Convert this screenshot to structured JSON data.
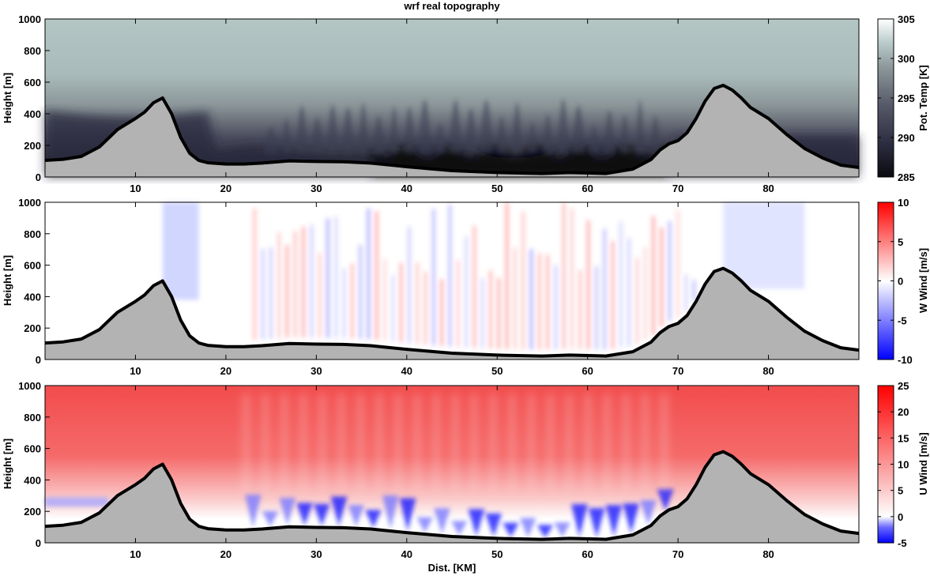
{
  "title": "wrf real topography",
  "xlabel": "Dist. [KM]",
  "chart_data": [
    {
      "type": "heatmap",
      "variable": "potential-temperature",
      "xlabel": "",
      "ylabel": "Height [m]",
      "xlim": [
        0,
        90
      ],
      "ylim": [
        0,
        1000
      ],
      "xticks": [
        10,
        20,
        30,
        40,
        50,
        60,
        70,
        80
      ],
      "yticks": [
        0,
        200,
        400,
        600,
        800,
        1000
      ],
      "colorbar": {
        "label": "Pot. Temp [K]",
        "range": [
          285,
          305
        ],
        "ticks": [
          285,
          290,
          295,
          300,
          305
        ],
        "colors": [
          "#0a0a0f",
          "#2b2b3f",
          "#555868",
          "#8e999c",
          "#b9cccb",
          "#ffffff"
        ]
      }
    },
    {
      "type": "heatmap",
      "variable": "vertical-wind",
      "xlabel": "",
      "ylabel": "Height [m]",
      "xlim": [
        0,
        90
      ],
      "ylim": [
        0,
        1000
      ],
      "xticks": [
        10,
        20,
        30,
        40,
        50,
        60,
        70,
        80
      ],
      "yticks": [
        0,
        200,
        400,
        600,
        800,
        1000
      ],
      "colorbar": {
        "label": "W Wind [m/s]",
        "range": [
          -10,
          10
        ],
        "ticks": [
          -10,
          -5,
          0,
          5,
          10
        ],
        "colors": [
          "#0000ff",
          "#ffffff",
          "#ff0000"
        ]
      }
    },
    {
      "type": "heatmap",
      "variable": "horizontal-wind",
      "xlabel": "Dist. [KM]",
      "ylabel": "Height [m]",
      "xlim": [
        0,
        90
      ],
      "ylim": [
        0,
        1000
      ],
      "xticks": [
        10,
        20,
        30,
        40,
        50,
        60,
        70,
        80
      ],
      "yticks": [
        0,
        200,
        400,
        600,
        800,
        1000
      ],
      "colorbar": {
        "label": "U Wind [m/s]",
        "range": [
          -5,
          25
        ],
        "ticks": [
          -5,
          0,
          5,
          10,
          15,
          20,
          25
        ],
        "colors": [
          "#0000ff",
          "#ffffff",
          "#ff0000"
        ]
      }
    }
  ],
  "terrain": {
    "x": [
      0,
      2,
      4,
      6,
      8,
      10,
      11,
      12,
      13,
      14,
      15,
      16,
      17,
      18,
      20,
      22,
      24,
      27,
      30,
      33,
      36,
      40,
      45,
      50,
      55,
      58,
      62,
      65,
      67,
      68,
      69,
      70,
      71,
      72,
      73,
      74,
      75,
      76,
      77,
      78,
      80,
      82,
      84,
      86,
      88,
      90
    ],
    "height": [
      105,
      112,
      130,
      190,
      300,
      370,
      410,
      470,
      500,
      400,
      250,
      150,
      105,
      90,
      82,
      82,
      88,
      102,
      98,
      96,
      88,
      65,
      40,
      28,
      22,
      28,
      22,
      50,
      110,
      170,
      210,
      230,
      280,
      370,
      480,
      560,
      580,
      550,
      500,
      440,
      370,
      270,
      180,
      120,
      75,
      60
    ]
  },
  "colors": {
    "terrain_fill": "#b3b3b3",
    "terrain_line": "#000000"
  }
}
